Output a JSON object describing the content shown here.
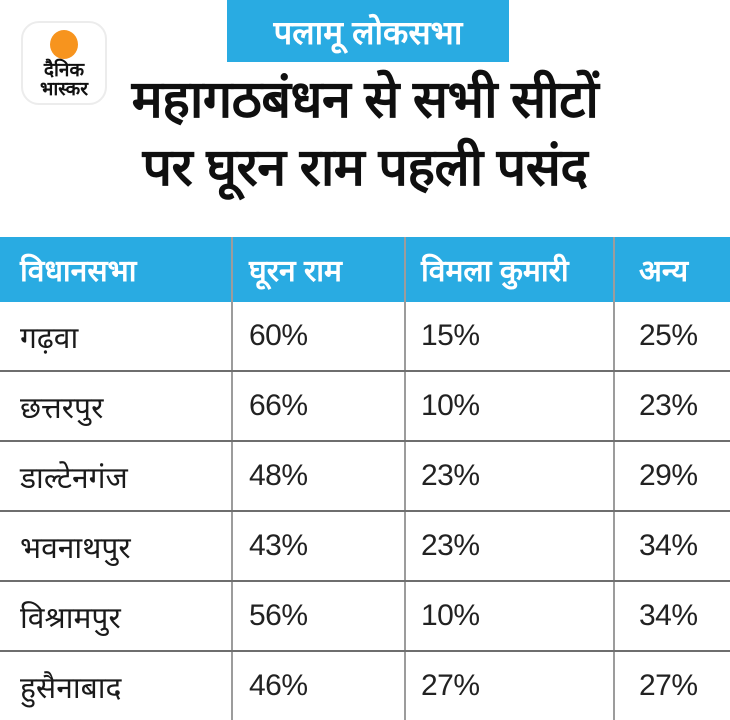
{
  "brand": {
    "logo_line1": "दैनिक",
    "logo_line2": "भास्कर",
    "sun_icon": "orange-circle"
  },
  "badge": {
    "label": "पलामू लोकसभा"
  },
  "headline": {
    "line1": "महागठबंधन से सभी सीटों",
    "line2": "पर घूरन राम पहली पसंद"
  },
  "chart_data": {
    "type": "table",
    "title": "महागठबंधन से सभी सीटों पर घूरन राम पहली पसंद",
    "badge": "पलामू लोकसभा",
    "columns": [
      "विधानसभा",
      "घूरन राम",
      "विमला कुमारी",
      "अन्य"
    ],
    "categories": [
      "गढ़वा",
      "छत्तरपुर",
      "डाल्टेनगंज",
      "भवनाथपुर",
      "विश्रामपुर",
      "हुसैनाबाद"
    ],
    "series": [
      {
        "name": "घूरन राम",
        "values": [
          60,
          66,
          48,
          43,
          56,
          46
        ]
      },
      {
        "name": "विमला कुमारी",
        "values": [
          15,
          10,
          23,
          23,
          10,
          27
        ]
      },
      {
        "name": "अन्य",
        "values": [
          25,
          23,
          29,
          34,
          34,
          27
        ]
      }
    ],
    "unit": "%",
    "rows_display": [
      [
        "गढ़वा",
        "60%",
        "15%",
        "25%"
      ],
      [
        "छत्तरपुर",
        "66%",
        "10%",
        "23%"
      ],
      [
        "डाल्टेनगंज",
        "48%",
        "23%",
        "29%"
      ],
      [
        "भवनाथपुर",
        "43%",
        "23%",
        "34%"
      ],
      [
        "विश्रामपुर",
        "56%",
        "10%",
        "34%"
      ],
      [
        "हुसैनाबाद",
        "46%",
        "27%",
        "27%"
      ]
    ]
  },
  "colors": {
    "accent_blue": "#29abe2",
    "sun_orange": "#f7941e",
    "headline_text": "#0f0f0f",
    "table_text": "#1a1a1a",
    "row_divider": "#6e6e6e",
    "column_divider": "#9c9c9c",
    "background": "#ffffff"
  }
}
